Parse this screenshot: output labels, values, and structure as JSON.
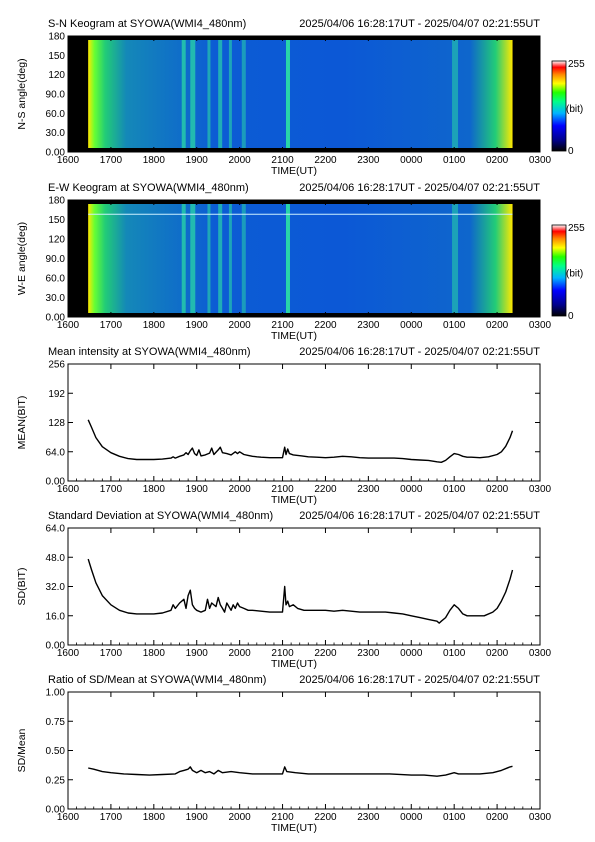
{
  "observation": {
    "station": "SYOWA",
    "instrument": "WMI4_480nm",
    "time_range": "2025/04/06 16:28:17UT - 2025/04/07 02:21:55UT"
  },
  "chart_data": [
    {
      "type": "heatmap",
      "title": "S-N Keogram at SYOWA(WMI4_480nm)",
      "subtitle": "2025/04/06 16:28:17UT - 2025/04/07 02:21:55UT",
      "xlabel": "TIME(UT)",
      "ylabel": "N-S angle(deg)",
      "x_ticks": [
        "1600",
        "1700",
        "1800",
        "1900",
        "2000",
        "2100",
        "2200",
        "2300",
        "0000",
        "0100",
        "0200",
        "0300"
      ],
      "y_ticks": [
        "0.00",
        "30.0",
        "60.0",
        "90.0",
        "120",
        "150",
        "180"
      ],
      "ylim": [
        0,
        180
      ],
      "colorbar": {
        "max_label": "255",
        "min_label": "0",
        "unit_label": "(bit)",
        "range": [
          0,
          255
        ]
      }
    },
    {
      "type": "heatmap",
      "title": "E-W Keogram at SYOWA(WMI4_480nm)",
      "subtitle": "2025/04/06 16:28:17UT - 2025/04/07 02:21:55UT",
      "xlabel": "TIME(UT)",
      "ylabel": "W-E angle(deg)",
      "x_ticks": [
        "1600",
        "1700",
        "1800",
        "1900",
        "2000",
        "2100",
        "2200",
        "2300",
        "0000",
        "0100",
        "0200",
        "0300"
      ],
      "y_ticks": [
        "0.00",
        "30.0",
        "60.0",
        "90.0",
        "120",
        "150",
        "180"
      ],
      "ylim": [
        0,
        180
      ],
      "colorbar": {
        "max_label": "255",
        "min_label": "0",
        "unit_label": "(bit)",
        "range": [
          0,
          255
        ]
      }
    },
    {
      "type": "line",
      "title": "Mean intensity at SYOWA(WMI4_480nm)",
      "subtitle": "2025/04/06 16:28:17UT - 2025/04/07 02:21:55UT",
      "xlabel": "TIME(UT)",
      "ylabel": "MEAN(BIT)",
      "x_ticks": [
        "1600",
        "1700",
        "1800",
        "1900",
        "2000",
        "2100",
        "2200",
        "2300",
        "0000",
        "0100",
        "0200",
        "0300"
      ],
      "y_ticks": [
        "0.00",
        "64.0",
        "128",
        "192",
        "256"
      ],
      "xlim": [
        16.0,
        27.0
      ],
      "ylim": [
        0,
        256
      ],
      "series": [
        {
          "points": [
            [
              16.47,
              134
            ],
            [
              16.55,
              117
            ],
            [
              16.65,
              95
            ],
            [
              16.8,
              75
            ],
            [
              17.0,
              62
            ],
            [
              17.2,
              54
            ],
            [
              17.4,
              49
            ],
            [
              17.6,
              47
            ],
            [
              17.8,
              47
            ],
            [
              18.0,
              47
            ],
            [
              18.2,
              48
            ],
            [
              18.4,
              50
            ],
            [
              18.45,
              53
            ],
            [
              18.5,
              50
            ],
            [
              18.6,
              54
            ],
            [
              18.7,
              57
            ],
            [
              18.75,
              62
            ],
            [
              18.8,
              58
            ],
            [
              18.85,
              66
            ],
            [
              18.9,
              72
            ],
            [
              18.95,
              60
            ],
            [
              19.0,
              56
            ],
            [
              19.05,
              68
            ],
            [
              19.1,
              55
            ],
            [
              19.2,
              57
            ],
            [
              19.3,
              61
            ],
            [
              19.35,
              72
            ],
            [
              19.4,
              58
            ],
            [
              19.5,
              68
            ],
            [
              19.55,
              74
            ],
            [
              19.6,
              62
            ],
            [
              19.7,
              60
            ],
            [
              19.8,
              57
            ],
            [
              19.9,
              64
            ],
            [
              19.95,
              60
            ],
            [
              20.0,
              64
            ],
            [
              20.1,
              58
            ],
            [
              20.2,
              56
            ],
            [
              20.3,
              54
            ],
            [
              20.4,
              53
            ],
            [
              20.5,
              52
            ],
            [
              20.7,
              51
            ],
            [
              20.9,
              51
            ],
            [
              21.0,
              51
            ],
            [
              21.05,
              74
            ],
            [
              21.08,
              58
            ],
            [
              21.12,
              70
            ],
            [
              21.16,
              60
            ],
            [
              21.25,
              57
            ],
            [
              21.35,
              56
            ],
            [
              21.45,
              55
            ],
            [
              21.6,
              53
            ],
            [
              21.8,
              52
            ],
            [
              22.0,
              51
            ],
            [
              22.2,
              52
            ],
            [
              22.4,
              54
            ],
            [
              22.6,
              53
            ],
            [
              22.8,
              51
            ],
            [
              23.0,
              50
            ],
            [
              23.2,
              50
            ],
            [
              23.4,
              50
            ],
            [
              23.6,
              50
            ],
            [
              23.8,
              49
            ],
            [
              24.0,
              47
            ],
            [
              24.2,
              46
            ],
            [
              24.4,
              45
            ],
            [
              24.6,
              42
            ],
            [
              24.7,
              41
            ],
            [
              24.8,
              45
            ],
            [
              24.9,
              53
            ],
            [
              25.0,
              60
            ],
            [
              25.1,
              58
            ],
            [
              25.2,
              54
            ],
            [
              25.3,
              52
            ],
            [
              25.4,
              52
            ],
            [
              25.6,
              51
            ],
            [
              25.8,
              53
            ],
            [
              26.0,
              58
            ],
            [
              26.1,
              64
            ],
            [
              26.2,
              76
            ],
            [
              26.3,
              95
            ],
            [
              26.36,
              110
            ]
          ]
        }
      ]
    },
    {
      "type": "line",
      "title": "Standard Deviation at SYOWA(WMI4_480nm)",
      "subtitle": "2025/04/06 16:28:17UT - 2025/04/07 02:21:55UT",
      "xlabel": "TIME(UT)",
      "ylabel": "SD(BIT)",
      "x_ticks": [
        "1600",
        "1700",
        "1800",
        "1900",
        "2000",
        "2100",
        "2200",
        "2300",
        "0000",
        "0100",
        "0200",
        "0300"
      ],
      "y_ticks": [
        "0.00",
        "16.0",
        "32.0",
        "48.0",
        "64.0"
      ],
      "xlim": [
        16.0,
        27.0
      ],
      "ylim": [
        0,
        64
      ],
      "series": [
        {
          "points": [
            [
              16.47,
              47
            ],
            [
              16.55,
              41
            ],
            [
              16.65,
              34
            ],
            [
              16.8,
              27
            ],
            [
              17.0,
              22
            ],
            [
              17.2,
              19
            ],
            [
              17.4,
              17.5
            ],
            [
              17.6,
              17
            ],
            [
              17.8,
              17
            ],
            [
              18.0,
              17
            ],
            [
              18.2,
              17.5
            ],
            [
              18.4,
              19
            ],
            [
              18.45,
              22
            ],
            [
              18.5,
              20
            ],
            [
              18.6,
              23
            ],
            [
              18.7,
              25
            ],
            [
              18.75,
              20
            ],
            [
              18.8,
              27
            ],
            [
              18.85,
              30
            ],
            [
              18.9,
              22
            ],
            [
              18.95,
              20
            ],
            [
              19.0,
              19
            ],
            [
              19.1,
              18
            ],
            [
              19.2,
              19
            ],
            [
              19.25,
              25
            ],
            [
              19.3,
              20
            ],
            [
              19.35,
              23
            ],
            [
              19.45,
              21
            ],
            [
              19.5,
              26
            ],
            [
              19.55,
              22
            ],
            [
              19.6,
              20
            ],
            [
              19.65,
              18
            ],
            [
              19.7,
              23
            ],
            [
              19.8,
              19
            ],
            [
              19.85,
              22
            ],
            [
              19.9,
              20
            ],
            [
              19.95,
              23
            ],
            [
              20.0,
              21
            ],
            [
              20.1,
              20
            ],
            [
              20.2,
              19
            ],
            [
              20.3,
              19
            ],
            [
              20.5,
              18.5
            ],
            [
              20.7,
              18
            ],
            [
              20.9,
              18
            ],
            [
              21.0,
              18
            ],
            [
              21.05,
              32
            ],
            [
              21.08,
              22
            ],
            [
              21.12,
              24
            ],
            [
              21.16,
              21
            ],
            [
              21.25,
              22
            ],
            [
              21.35,
              20
            ],
            [
              21.5,
              19
            ],
            [
              21.7,
              19
            ],
            [
              22.0,
              19
            ],
            [
              22.2,
              18.5
            ],
            [
              22.4,
              19
            ],
            [
              22.6,
              18.5
            ],
            [
              22.8,
              18
            ],
            [
              23.0,
              18
            ],
            [
              23.2,
              18
            ],
            [
              23.4,
              18
            ],
            [
              23.6,
              17.5
            ],
            [
              23.8,
              17
            ],
            [
              24.0,
              16
            ],
            [
              24.2,
              15
            ],
            [
              24.4,
              14
            ],
            [
              24.6,
              13
            ],
            [
              24.65,
              12
            ],
            [
              24.7,
              13
            ],
            [
              24.8,
              15
            ],
            [
              24.9,
              19
            ],
            [
              25.0,
              22
            ],
            [
              25.1,
              20
            ],
            [
              25.2,
              17
            ],
            [
              25.3,
              16
            ],
            [
              25.5,
              16
            ],
            [
              25.7,
              16
            ],
            [
              25.9,
              18
            ],
            [
              26.0,
              20
            ],
            [
              26.1,
              24
            ],
            [
              26.2,
              29
            ],
            [
              26.3,
              36
            ],
            [
              26.36,
              41
            ]
          ]
        }
      ]
    },
    {
      "type": "line",
      "title": "Ratio of SD/Mean at SYOWA(WMI4_480nm)",
      "subtitle": "2025/04/06 16:28:17UT - 2025/04/07 02:21:55UT",
      "xlabel": "TIME(UT)",
      "ylabel": "SD/Mean",
      "x_ticks": [
        "1600",
        "1700",
        "1800",
        "1900",
        "2000",
        "2100",
        "2200",
        "2300",
        "0000",
        "0100",
        "0200",
        "0300"
      ],
      "y_ticks": [
        "0.00",
        "0.25",
        "0.50",
        "0.75",
        "1.00"
      ],
      "xlim": [
        16.0,
        27.0
      ],
      "ylim": [
        0,
        1
      ],
      "series": [
        {
          "points": [
            [
              16.47,
              0.35
            ],
            [
              16.6,
              0.34
            ],
            [
              16.8,
              0.32
            ],
            [
              17.0,
              0.31
            ],
            [
              17.3,
              0.3
            ],
            [
              17.6,
              0.295
            ],
            [
              17.9,
              0.29
            ],
            [
              18.2,
              0.295
            ],
            [
              18.5,
              0.3
            ],
            [
              18.6,
              0.32
            ],
            [
              18.7,
              0.33
            ],
            [
              18.8,
              0.34
            ],
            [
              18.85,
              0.36
            ],
            [
              18.9,
              0.33
            ],
            [
              19.0,
              0.31
            ],
            [
              19.1,
              0.33
            ],
            [
              19.2,
              0.31
            ],
            [
              19.3,
              0.32
            ],
            [
              19.4,
              0.3
            ],
            [
              19.5,
              0.33
            ],
            [
              19.6,
              0.31
            ],
            [
              19.8,
              0.32
            ],
            [
              20.0,
              0.31
            ],
            [
              20.3,
              0.3
            ],
            [
              20.6,
              0.3
            ],
            [
              20.9,
              0.3
            ],
            [
              21.0,
              0.3
            ],
            [
              21.05,
              0.36
            ],
            [
              21.1,
              0.32
            ],
            [
              21.3,
              0.31
            ],
            [
              21.6,
              0.3
            ],
            [
              22.0,
              0.3
            ],
            [
              22.5,
              0.3
            ],
            [
              23.0,
              0.3
            ],
            [
              23.5,
              0.3
            ],
            [
              24.0,
              0.29
            ],
            [
              24.3,
              0.29
            ],
            [
              24.6,
              0.28
            ],
            [
              24.8,
              0.29
            ],
            [
              25.0,
              0.31
            ],
            [
              25.1,
              0.3
            ],
            [
              25.3,
              0.3
            ],
            [
              25.6,
              0.3
            ],
            [
              25.9,
              0.31
            ],
            [
              26.1,
              0.33
            ],
            [
              26.3,
              0.36
            ],
            [
              26.36,
              0.365
            ]
          ]
        }
      ]
    }
  ]
}
